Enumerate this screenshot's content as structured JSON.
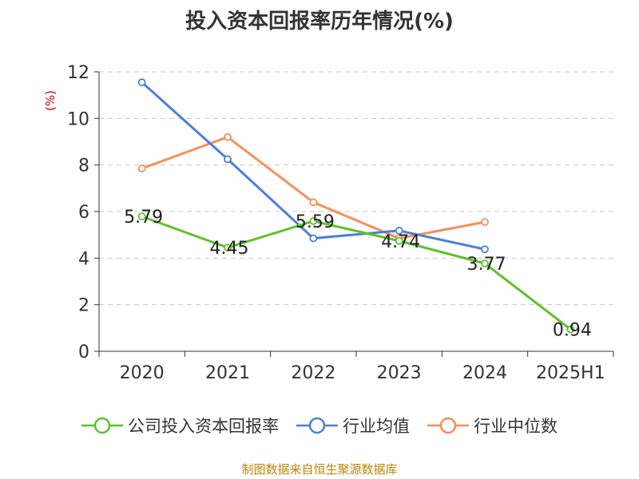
{
  "chart_data": {
    "type": "line",
    "title": "投入资本回报率历年情况(%)",
    "ylabel": "(%)",
    "xlabel": "",
    "categories": [
      "2020",
      "2021",
      "2022",
      "2023",
      "2024",
      "2025H1"
    ],
    "ylim": [
      0,
      12
    ],
    "yticks": [
      0,
      2,
      4,
      6,
      8,
      10,
      12
    ],
    "grid": true,
    "legend_position": "bottom",
    "series": [
      {
        "name": "公司投入资本回报率",
        "color": "#5dc22a",
        "values": [
          5.79,
          4.45,
          5.59,
          4.74,
          3.77,
          0.94
        ],
        "labels": [
          "5.79",
          "4.45",
          "5.59",
          "4.74",
          "3.77",
          "0.94"
        ]
      },
      {
        "name": "行业均值",
        "color": "#4a7fdc",
        "values": [
          11.55,
          8.25,
          4.85,
          5.18,
          4.38,
          null
        ]
      },
      {
        "name": "行业中位数",
        "color": "#f4905a",
        "values": [
          7.85,
          9.2,
          6.4,
          4.85,
          5.55,
          null
        ]
      }
    ]
  },
  "source": "制图数据来自恒生聚源数据库"
}
